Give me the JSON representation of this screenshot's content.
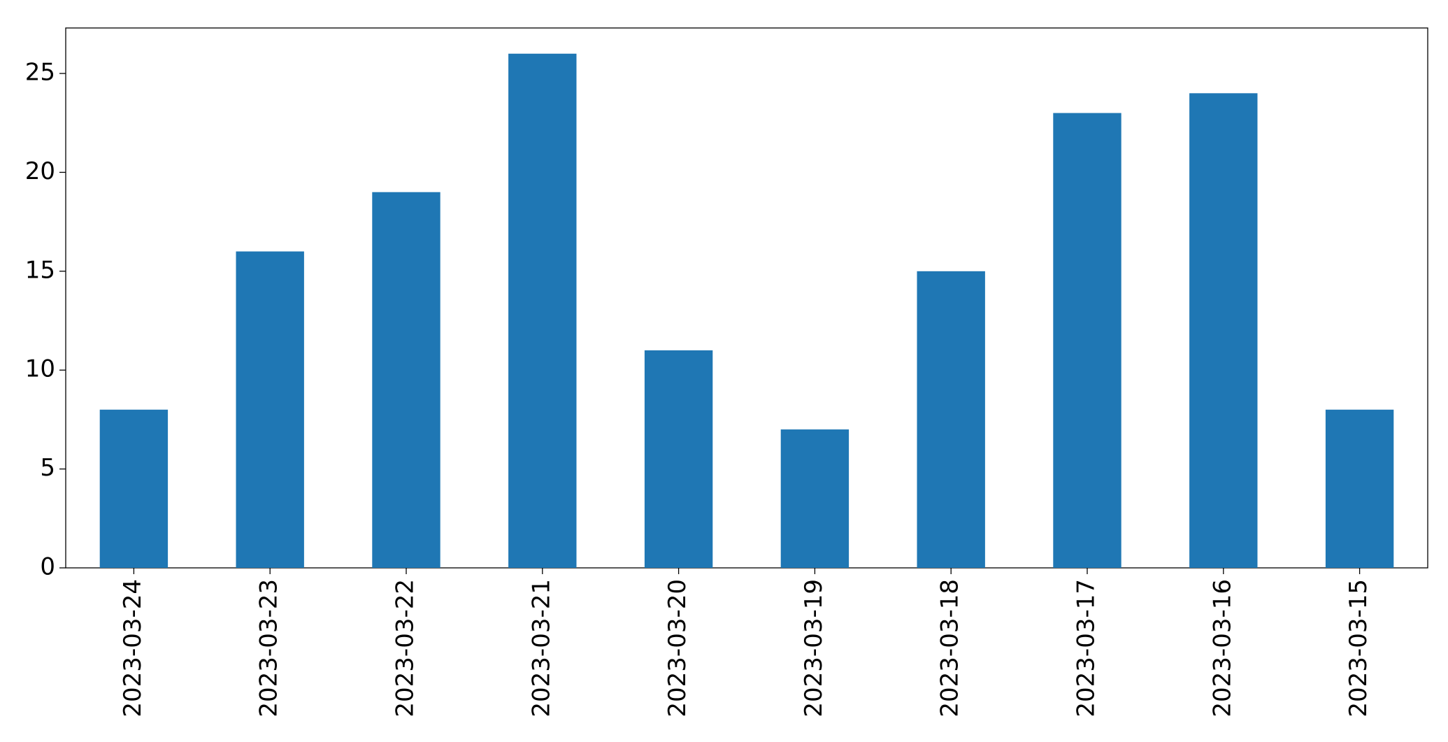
{
  "chart_data": {
    "type": "bar",
    "categories": [
      "2023-03-24",
      "2023-03-23",
      "2023-03-22",
      "2023-03-21",
      "2023-03-20",
      "2023-03-19",
      "2023-03-18",
      "2023-03-17",
      "2023-03-16",
      "2023-03-15"
    ],
    "values": [
      8,
      16,
      19,
      26,
      11,
      7,
      15,
      23,
      24,
      8
    ],
    "color": "#1f77b4",
    "ylim": [
      0,
      27.3
    ],
    "yticks": [
      0,
      5,
      10,
      15,
      20,
      25
    ],
    "grid": false
  }
}
